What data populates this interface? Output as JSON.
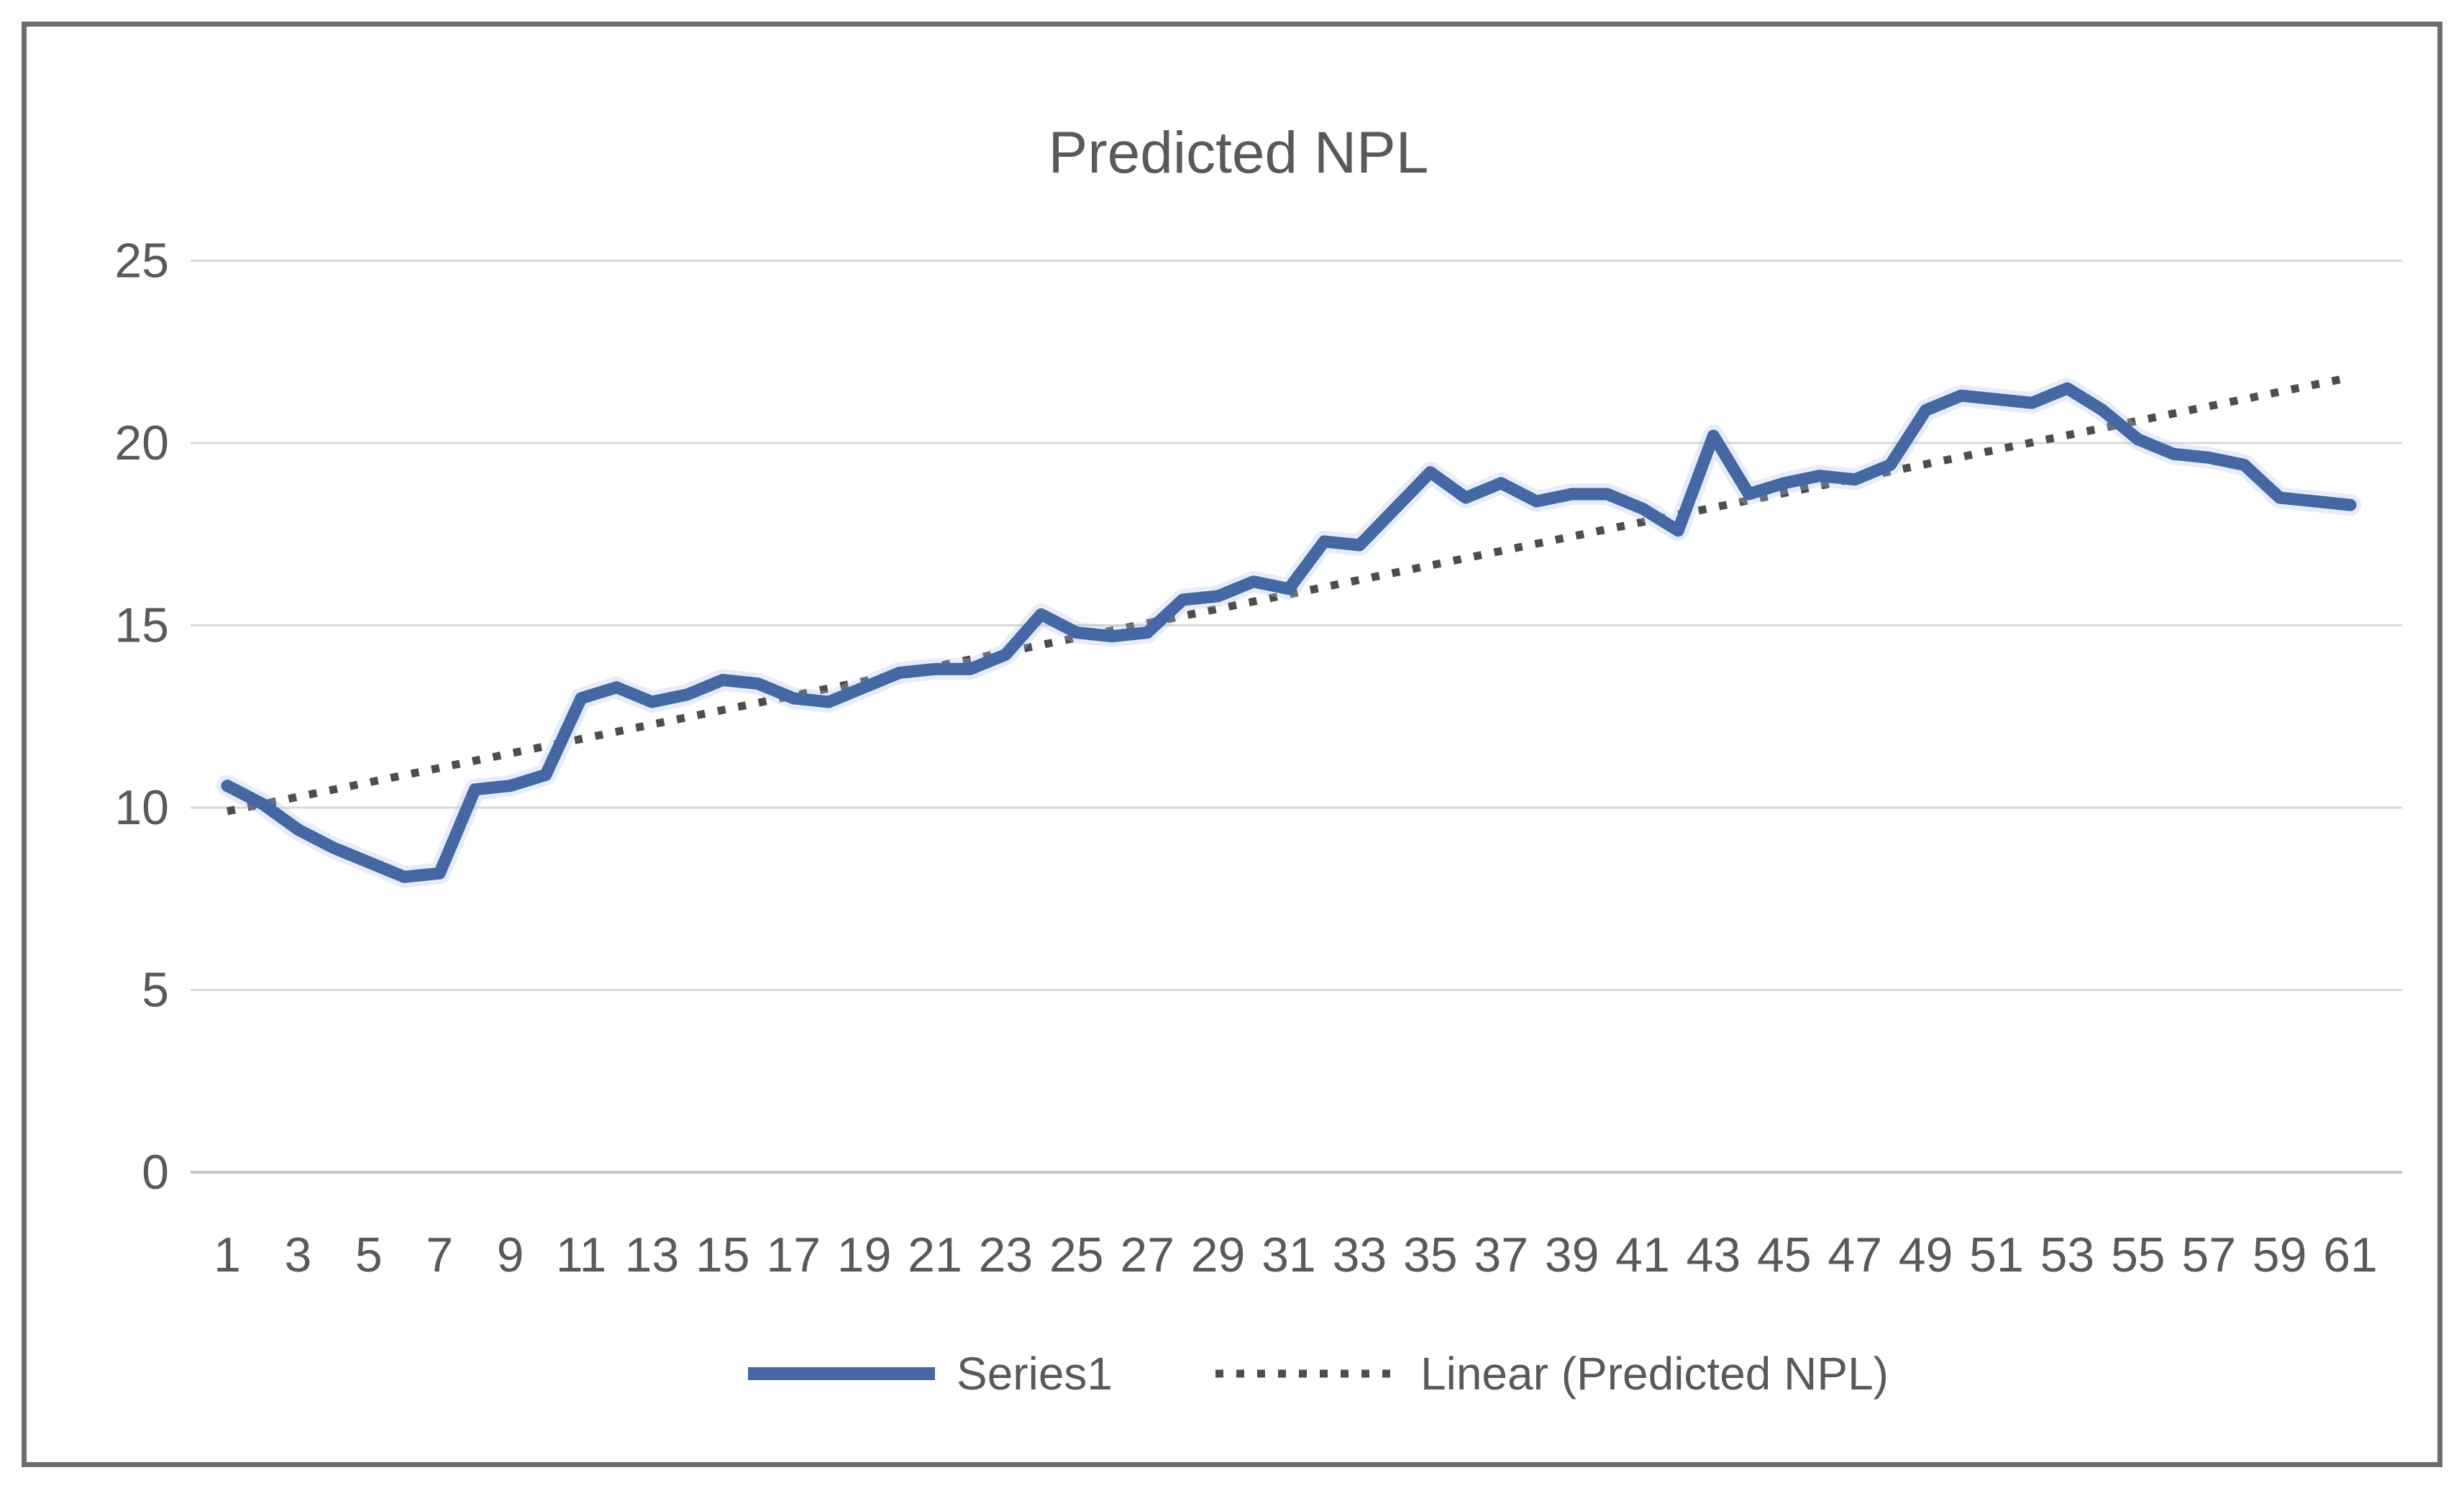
{
  "chart_data": {
    "type": "line",
    "title": "Predicted NPL",
    "x": [
      1,
      2,
      3,
      4,
      5,
      6,
      7,
      8,
      9,
      10,
      11,
      12,
      13,
      14,
      15,
      16,
      17,
      18,
      19,
      20,
      21,
      22,
      23,
      24,
      25,
      26,
      27,
      28,
      29,
      30,
      31,
      32,
      33,
      34,
      35,
      36,
      37,
      38,
      39,
      40,
      41,
      42,
      43,
      44,
      45,
      46,
      47,
      48,
      49,
      50,
      51,
      52,
      53,
      54,
      55,
      56,
      57,
      58,
      59,
      60,
      61
    ],
    "series": [
      {
        "name": "Series1",
        "type": "line",
        "style": "solid",
        "color": "#4568A4",
        "values": [
          10.6,
          10.1,
          9.4,
          8.9,
          8.5,
          8.1,
          8.2,
          10.5,
          10.6,
          10.9,
          13.0,
          13.3,
          12.9,
          13.1,
          13.5,
          13.4,
          13.0,
          12.9,
          13.3,
          13.7,
          13.8,
          13.8,
          14.2,
          15.3,
          14.8,
          14.7,
          14.8,
          15.7,
          15.8,
          16.2,
          16.0,
          17.3,
          17.2,
          18.2,
          19.2,
          18.5,
          18.9,
          18.4,
          18.6,
          18.6,
          18.2,
          17.6,
          20.2,
          18.6,
          18.9,
          19.1,
          19.0,
          19.4,
          20.9,
          21.3,
          21.2,
          21.1,
          21.5,
          20.9,
          20.1,
          19.7,
          19.6,
          19.4,
          18.5,
          18.4,
          18.3
        ]
      },
      {
        "name": "Linear (Predicted NPL)",
        "type": "trendline",
        "style": "dotted",
        "color": "#4D4D4D",
        "trend_start": 9.9,
        "trend_end": 21.8
      }
    ],
    "xlabel": "",
    "ylabel": "",
    "ylim": [
      0,
      25
    ],
    "ytick_step": 5,
    "y_tick_labels": [
      "0",
      "5",
      "10",
      "15",
      "20",
      "25"
    ],
    "x_tick_labels": [
      "1",
      "3",
      "5",
      "7",
      "9",
      "11",
      "13",
      "15",
      "17",
      "19",
      "21",
      "23",
      "25",
      "27",
      "29",
      "31",
      "33",
      "35",
      "37",
      "39",
      "41",
      "43",
      "45",
      "47",
      "49",
      "51",
      "53",
      "55",
      "57",
      "59",
      "61"
    ],
    "grid": true,
    "legend_position": "bottom",
    "colors": {
      "text": "#595959",
      "gridline": "#D9D9D9",
      "axis_line": "#C6C6C6",
      "frame_border": "#6F6F6F",
      "series_halo": "#AEC4E8"
    }
  }
}
